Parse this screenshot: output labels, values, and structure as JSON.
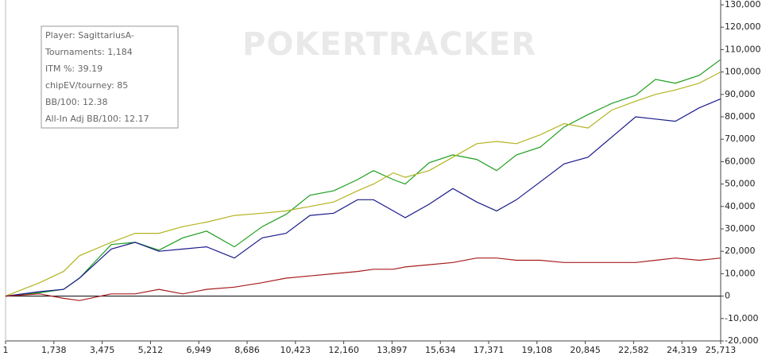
{
  "chart_data": {
    "type": "line",
    "watermark": "POKERTRACKER",
    "annotations": [
      "Player: SagittariusA-",
      "Tournaments: 1,184",
      "ITM %: 39.19",
      "chipEV/tourney: 85",
      "BB/100: 12.38",
      "All-In Adj BB/100: 12.17"
    ],
    "x": [
      1,
      1229,
      2086,
      2657,
      3800,
      4657,
      5514,
      6371,
      7228,
      8228,
      9228,
      10085,
      10942,
      11799,
      12656,
      13227,
      13942,
      14370,
      15227,
      16084,
      16941,
      17656,
      18370,
      19227,
      20084,
      20941,
      21798,
      22655,
      23370,
      24084,
      24941,
      25713
    ],
    "series": [
      {
        "color": "#1e9e1e",
        "values": [
          0,
          1500,
          3000,
          8000,
          23000,
          24000,
          20500,
          26000,
          29000,
          22000,
          31000,
          36500,
          45000,
          47000,
          52000,
          56000,
          52000,
          50000,
          59500,
          63000,
          61000,
          56000,
          63000,
          66500,
          75500,
          81000,
          86000,
          89600,
          96700,
          95000,
          98500,
          105600
        ]
      },
      {
        "color": "#b3b320",
        "values": [
          0,
          6000,
          11000,
          18000,
          24000,
          28000,
          28000,
          31000,
          33000,
          36000,
          37000,
          38000,
          40000,
          42000,
          47000,
          50000,
          55000,
          53000,
          56000,
          62000,
          68000,
          69000,
          68000,
          72000,
          77000,
          75000,
          83000,
          87000,
          90000,
          92000,
          95000,
          100000
        ]
      },
      {
        "color": "#1a1a8c",
        "values": [
          0,
          2000,
          3000,
          8000,
          21000,
          24000,
          20000,
          21000,
          22000,
          17000,
          26000,
          28000,
          36000,
          37000,
          43000,
          43000,
          38000,
          35000,
          41000,
          48000,
          42000,
          38000,
          43000,
          51000,
          59000,
          62000,
          71000,
          80000,
          79000,
          78000,
          84000,
          88000
        ]
      },
      {
        "color": "#a81c1c",
        "values": [
          0,
          1000,
          -1000,
          -2000,
          1000,
          1000,
          3000,
          1000,
          3000,
          4000,
          6000,
          8000,
          9000,
          10000,
          11000,
          12000,
          12000,
          13000,
          14000,
          15000,
          17000,
          17000,
          16000,
          16000,
          15000,
          15000,
          15000,
          15000,
          16000,
          17000,
          16000,
          17000
        ]
      }
    ],
    "xlim": [
      1,
      25713
    ],
    "xticks": [
      1,
      {
        "value": 1738,
        "label": "1,738"
      },
      {
        "value": 3475,
        "label": "3,475"
      },
      {
        "value": 5212,
        "label": "5,212"
      },
      {
        "value": 6949,
        "label": "6,949"
      },
      {
        "value": 8686,
        "label": "8,686"
      },
      {
        "value": 10423,
        "label": "10,423"
      },
      {
        "value": 12160,
        "label": "12,160"
      },
      {
        "value": 13897,
        "label": "13,897"
      },
      {
        "value": 15634,
        "label": "15,634"
      },
      {
        "value": 17371,
        "label": "17,371"
      },
      {
        "value": 19108,
        "label": "19,108"
      },
      {
        "value": 20845,
        "label": "20,845"
      },
      {
        "value": 22582,
        "label": "22,582"
      },
      {
        "value": 24319,
        "label": "24,319"
      },
      {
        "value": 25713,
        "label": "25,713"
      }
    ],
    "ylim": [
      -20000,
      130000
    ],
    "yticks": [
      {
        "value": -20000,
        "label": "-20,000"
      },
      {
        "value": -10000,
        "label": "-10,000"
      },
      0,
      {
        "value": 10000,
        "label": "10,000"
      },
      {
        "value": 20000,
        "label": "20,000"
      },
      {
        "value": 30000,
        "label": "30,000"
      },
      {
        "value": 40000,
        "label": "40,000"
      },
      {
        "value": 50000,
        "label": "50,000"
      },
      {
        "value": 60000,
        "label": "60,000"
      },
      {
        "value": 70000,
        "label": "70,000"
      },
      {
        "value": 80000,
        "label": "80,000"
      },
      {
        "value": 90000,
        "label": "90,000"
      },
      {
        "value": 100000,
        "label": "100,000"
      },
      {
        "value": 110000,
        "label": "110,000"
      },
      {
        "value": 120000,
        "label": "120,000"
      },
      {
        "value": 130000,
        "label": "130,000"
      }
    ]
  }
}
